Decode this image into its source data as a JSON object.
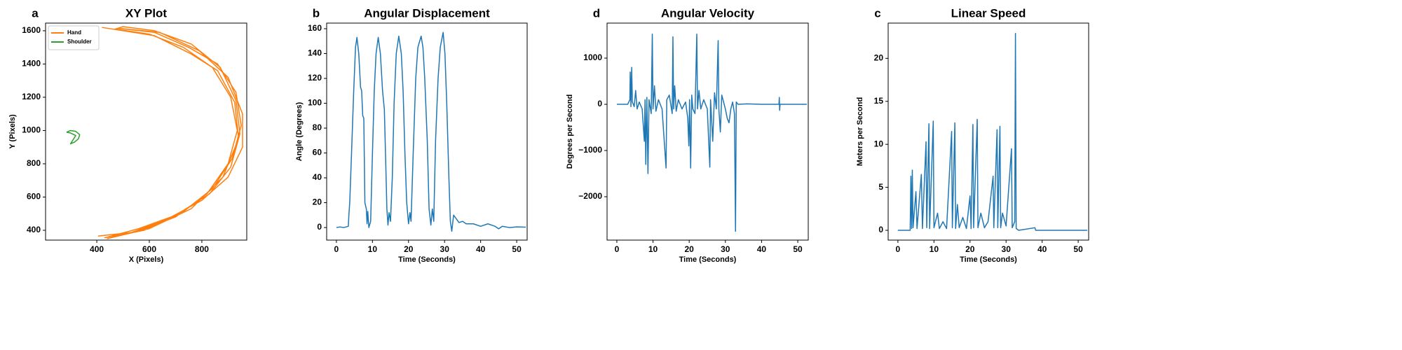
{
  "chart_data": [
    {
      "type": "line",
      "panel_label": "a",
      "title": "XY Plot",
      "x_label": "X (Pixels)",
      "y_label": "Y (Pixels)",
      "xlim": [
        205,
        971
      ],
      "ylim": [
        341,
        1646
      ],
      "xticks": [
        400,
        600,
        800
      ],
      "yticks": [
        400,
        600,
        800,
        1000,
        1200,
        1400,
        1600
      ],
      "legend": "upper left",
      "series": [
        {
          "name": "Hand",
          "color": "#ff7f0e",
          "x": [
            405,
            550,
            700,
            820,
            900,
            935,
            910,
            840,
            730,
            600,
            470,
            500,
            620,
            760,
            870,
            930,
            945,
            910,
            830,
            700,
            560,
            430,
            580,
            720,
            840,
            915,
            950,
            930,
            860,
            750,
            620,
            480,
            640,
            790,
            900,
            955,
            955,
            900,
            800,
            660,
            520,
            440,
            600,
            760,
            880,
            940,
            925,
            860,
            760,
            620,
            420
          ],
          "values": [
            365,
            390,
            480,
            620,
            800,
            1000,
            1200,
            1380,
            1500,
            1580,
            1610,
            1625,
            1600,
            1520,
            1380,
            1180,
            980,
            780,
            620,
            490,
            410,
            355,
            400,
            500,
            650,
            830,
            1030,
            1230,
            1400,
            1500,
            1590,
            1615,
            1590,
            1480,
            1320,
            1100,
            900,
            720,
            580,
            460,
            380,
            350,
            410,
            530,
            720,
            950,
            1170,
            1360,
            1460,
            1570,
            1620
          ]
        },
        {
          "name": "Shoulder",
          "color": "#2ca02c",
          "x": [
            285,
            300,
            320,
            335,
            330,
            315,
            300,
            310,
            320,
            300,
            285
          ],
          "values": [
            990,
            1000,
            995,
            975,
            950,
            930,
            920,
            945,
            970,
            985,
            990
          ]
        }
      ]
    },
    {
      "type": "line",
      "panel_label": "b",
      "title": "Angular Displacement",
      "x_label": "Time (Seconds)",
      "y_label": "Angle (Degrees)",
      "xlim": [
        -2.7,
        52.9
      ],
      "ylim": [
        -10.1,
        164.5
      ],
      "xticks": [
        0,
        10,
        20,
        30,
        40,
        50
      ],
      "yticks": [
        0,
        20,
        40,
        60,
        80,
        100,
        120,
        140,
        160
      ],
      "series": [
        {
          "color": "#1f77b4",
          "x": [
            0,
            1,
            2,
            3.3,
            3.5,
            3.7,
            4.2,
            4.8,
            5.3,
            5.7,
            6.2,
            6.7,
            7,
            7.3,
            7.6,
            7.9,
            8.3,
            8.5,
            8.7,
            9,
            9.5,
            10,
            10.5,
            11,
            11.6,
            12.2,
            12.8,
            13.3,
            13.7,
            14,
            14.3,
            14.6,
            15,
            15.5,
            16,
            16.6,
            17.3,
            18,
            18.5,
            19,
            19.5,
            20,
            20.4,
            20.7,
            21.3,
            22,
            22.6,
            23.5,
            24,
            24.5,
            25.2,
            25.7,
            26.2,
            26.6,
            27,
            27.5,
            28.2,
            28.8,
            29.6,
            30.1,
            30.6,
            31.2,
            31.6,
            32,
            32.5,
            33,
            34,
            35,
            36,
            38,
            40,
            42,
            44,
            45,
            46,
            48,
            50,
            52.5
          ],
          "values": [
            0,
            0.5,
            0,
            1,
            12,
            20,
            60,
            110,
            145,
            153,
            140,
            113,
            110,
            90,
            88,
            20,
            15,
            3,
            13,
            0,
            5,
            60,
            110,
            140,
            153,
            140,
            110,
            95,
            50,
            15,
            2,
            12,
            5,
            40,
            100,
            140,
            154,
            140,
            110,
            60,
            20,
            3,
            12,
            5,
            60,
            120,
            145,
            154,
            145,
            120,
            70,
            15,
            2,
            15,
            5,
            70,
            120,
            145,
            157,
            140,
            100,
            40,
            5,
            -3,
            10,
            8,
            4,
            5,
            3,
            3,
            1,
            3,
            1,
            -1,
            1,
            0,
            0.5,
            0.3
          ]
        }
      ]
    },
    {
      "type": "line",
      "panel_label": "d",
      "title": "Angular Velocity",
      "x_label": "Time (Seconds)",
      "y_label": "Degrees per Second",
      "xlim": [
        -2.7,
        52.9
      ],
      "ylim": [
        -2939,
        1758
      ],
      "xticks": [
        0,
        10,
        20,
        30,
        40,
        50
      ],
      "yticks": [
        {
          "value": -2000,
          "label": "−2000"
        },
        {
          "value": -1000,
          "label": "−1000"
        },
        0,
        1000
      ],
      "series": [
        {
          "color": "#1f77b4",
          "x": [
            0,
            3,
            3.6,
            3.7,
            3.9,
            4.1,
            4.3,
            4.8,
            5.2,
            5.6,
            6.2,
            7,
            7.6,
            7.8,
            8,
            8.3,
            8.6,
            8.9,
            9.5,
            9.8,
            10,
            10.4,
            10.8,
            11.5,
            12.5,
            13.6,
            13.8,
            14.5,
            15.3,
            15.5,
            15.7,
            16,
            16.4,
            17,
            18,
            19,
            19.6,
            19.9,
            20.1,
            20.4,
            20.7,
            21,
            21.6,
            22.1,
            22.3,
            22.7,
            23.2,
            24,
            25,
            25.7,
            25.9,
            26.5,
            27,
            27.5,
            28,
            28.2,
            28.6,
            29,
            30,
            30.5,
            31,
            31.5,
            32,
            32.5,
            32.8,
            33,
            33.5,
            36,
            40,
            44.8,
            44.9,
            45,
            45.1,
            52.5
          ],
          "values": [
            0,
            0,
            100,
            700,
            -50,
            800,
            50,
            -50,
            300,
            -100,
            50,
            -100,
            -800,
            100,
            -1300,
            150,
            -1500,
            100,
            -200,
            1520,
            -100,
            400,
            -150,
            100,
            -100,
            -1380,
            100,
            200,
            -200,
            1460,
            -100,
            400,
            -150,
            100,
            -100,
            50,
            -300,
            -900,
            100,
            -1380,
            200,
            -100,
            -200,
            1520,
            -100,
            300,
            -100,
            100,
            -100,
            -1360,
            100,
            -800,
            250,
            -100,
            1380,
            -100,
            -600,
            200,
            -100,
            -300,
            -400,
            -100,
            50,
            -200,
            -2750,
            50,
            0,
            10,
            0,
            0,
            150,
            -130,
            0,
            0
          ]
        }
      ]
    },
    {
      "type": "line",
      "panel_label": "c",
      "title": "Linear Speed",
      "x_label": "Time (Seconds)",
      "y_label": "Meters per Second",
      "xlim": [
        -2.7,
        52.9
      ],
      "ylim": [
        -1.14,
        24.1
      ],
      "xticks": [
        0,
        10,
        20,
        30,
        40,
        50
      ],
      "yticks": [
        0,
        5,
        10,
        15,
        20
      ],
      "series": [
        {
          "color": "#1f77b4",
          "x": [
            0,
            3.4,
            3.6,
            3.8,
            4,
            4.2,
            5,
            5.3,
            6.5,
            6.8,
            7.8,
            8,
            8.6,
            8.8,
            9.8,
            10,
            11,
            11.5,
            12.5,
            13.5,
            14.9,
            15.1,
            15.8,
            16,
            16.5,
            17,
            18,
            19,
            20,
            20.3,
            20.8,
            21,
            22,
            22.2,
            23,
            24,
            25,
            26.4,
            26.6,
            27.5,
            27.7,
            28.3,
            28.5,
            29,
            30,
            31.5,
            31.7,
            32.4,
            32.6,
            32.8,
            33.5,
            38,
            38.2,
            45,
            52.5
          ],
          "values": [
            0,
            0,
            6.3,
            0.2,
            7,
            0.3,
            4.5,
            0.2,
            6.5,
            0.2,
            10.3,
            0.3,
            12.4,
            0.2,
            12.7,
            0.3,
            2,
            0.2,
            1,
            0.2,
            11.5,
            0.3,
            12.5,
            0.2,
            3,
            0.3,
            1.5,
            0.2,
            4,
            0.2,
            12.3,
            0.3,
            12.9,
            0.3,
            2,
            0.3,
            1,
            6.3,
            0.3,
            11.7,
            0.3,
            12.1,
            0.3,
            2,
            0.5,
            9.5,
            0.3,
            1,
            22.9,
            0.2,
            0,
            0.3,
            0,
            0,
            0
          ]
        }
      ]
    }
  ]
}
